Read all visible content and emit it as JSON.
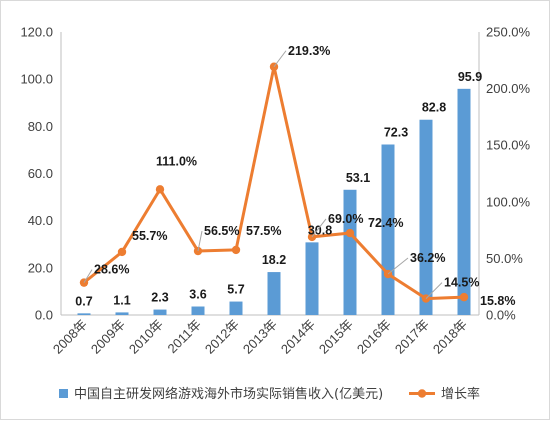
{
  "chart_data": {
    "type": "bar",
    "categories": [
      "2008年",
      "2009年",
      "2010年",
      "2011年",
      "2012年",
      "2013年",
      "2014年",
      "2015年",
      "2016年",
      "2017年",
      "2018年"
    ],
    "series": [
      {
        "name": "中国自主研发网络游戏海外市场实际销售收入(亿美元)",
        "type": "bar",
        "axis": "left",
        "color": "#5b9bd5",
        "values": [
          0.7,
          1.1,
          2.3,
          3.6,
          5.7,
          18.2,
          30.8,
          53.1,
          72.3,
          82.8,
          95.9
        ],
        "labels": [
          "0.7",
          "1.1",
          "2.3",
          "3.6",
          "5.7",
          "18.2",
          "30.8",
          "53.1",
          "72.3",
          "82.8",
          "95.9"
        ]
      },
      {
        "name": "增长率",
        "type": "line",
        "axis": "right",
        "color": "#ed7d31",
        "values": [
          28.6,
          55.7,
          111.0,
          56.5,
          57.5,
          219.3,
          69.0,
          72.4,
          36.2,
          14.5,
          15.8
        ],
        "labels": [
          "28.6%",
          "55.7%",
          "111.0%",
          "56.5%",
          "57.5%",
          "219.3%",
          "69.0%",
          "72.4%",
          "36.2%",
          "14.5%",
          "15.8%"
        ]
      }
    ],
    "y_left": {
      "min": 0,
      "max": 120,
      "ticks": [
        "0.0",
        "20.0",
        "40.0",
        "60.0",
        "80.0",
        "100.0",
        "120.0"
      ]
    },
    "y_right": {
      "min": 0,
      "max": 250,
      "ticks": [
        "0.0%",
        "50.0%",
        "100.0%",
        "150.0%",
        "200.0%",
        "250.0%"
      ]
    },
    "grid": false,
    "legend_position": "bottom"
  }
}
